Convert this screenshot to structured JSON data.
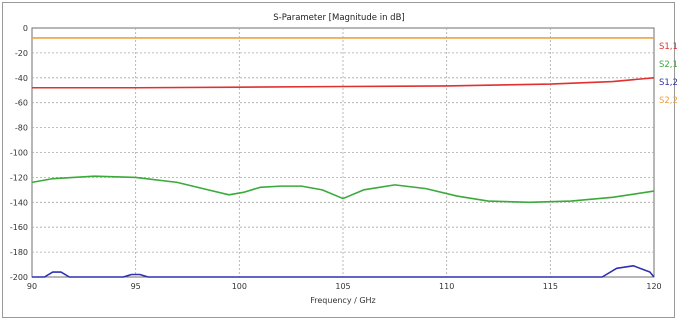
{
  "chart_data": {
    "type": "line",
    "title": "S-Parameter [Magnitude in dB]",
    "xlabel": "Frequency / GHz",
    "ylabel": "",
    "xlim": [
      90,
      120
    ],
    "ylim": [
      -200,
      0
    ],
    "grid": true,
    "legend_position": "right",
    "x_ticks": [
      90,
      95,
      100,
      105,
      110,
      115,
      120
    ],
    "x_tick_labels": [
      "90",
      "95",
      "100",
      "105",
      "110",
      "115",
      "120"
    ],
    "y_ticks": [
      0,
      -20,
      -40,
      -60,
      -80,
      -100,
      -120,
      -140,
      -160,
      -180,
      -200
    ],
    "y_tick_labels": [
      "0",
      "-20",
      "-40",
      "-60",
      "-80",
      "-100",
      "-120",
      "-140",
      "-160",
      "-180",
      "-200"
    ],
    "series": [
      {
        "name": "S1,1",
        "color": "#e03030",
        "x": [
          90,
          95,
          100,
          105,
          110,
          115,
          118,
          120
        ],
        "y": [
          -48,
          -48,
          -47.5,
          -47,
          -46.5,
          -45,
          -43,
          -40
        ]
      },
      {
        "name": "S2,1",
        "color": "#3aaa3a",
        "x": [
          90,
          91,
          93,
          95,
          97,
          98.5,
          99.5,
          100.2,
          101,
          102,
          103,
          104,
          105,
          106,
          107.5,
          109,
          110.5,
          112,
          114,
          116,
          118,
          120
        ],
        "y": [
          -124,
          -121,
          -119,
          -120,
          -124,
          -130,
          -134,
          -132,
          -128,
          -127,
          -127,
          -130,
          -137,
          -130,
          -126,
          -129,
          -135,
          -139,
          -140,
          -139,
          -136,
          -131
        ]
      },
      {
        "name": "S1,2",
        "color": "#3030b0",
        "x": [
          90,
          90.6,
          91,
          91.4,
          91.8,
          94,
          94.4,
          94.8,
          95.2,
          95.6,
          117.5,
          118.2,
          119,
          119.8,
          120
        ],
        "y": [
          -200,
          -200,
          -196,
          -196,
          -200,
          -200,
          -200,
          -198,
          -198,
          -200,
          -200,
          -193,
          -191,
          -196,
          -200
        ]
      },
      {
        "name": "S2,2",
        "color": "#f0a040",
        "x": [
          90,
          100,
          110,
          120
        ],
        "y": [
          -8,
          -8,
          -8,
          -8
        ]
      }
    ]
  }
}
